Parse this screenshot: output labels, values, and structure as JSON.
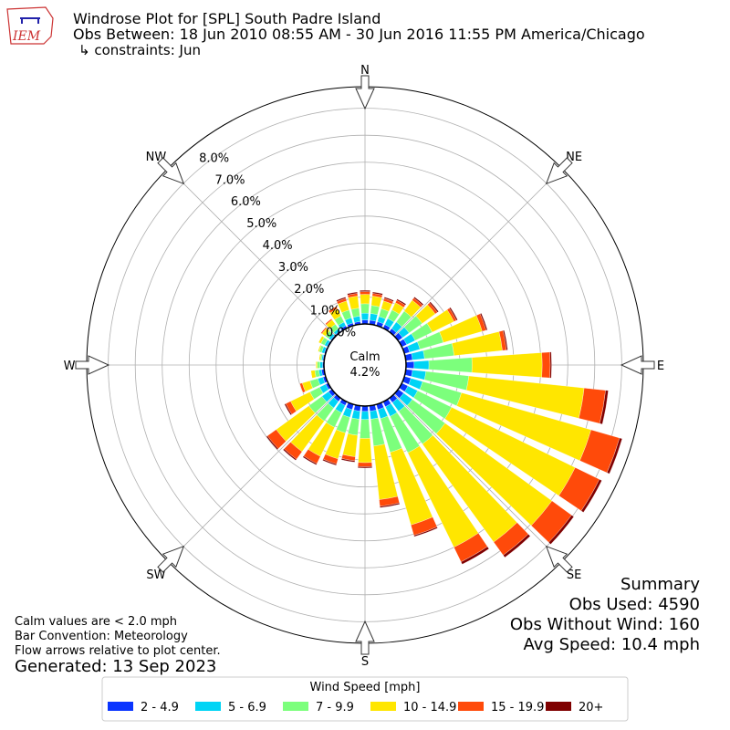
{
  "chart_data": {
    "type": "windrose",
    "logo_text": "IEM",
    "title": "Windrose Plot for [SPL] South Padre Island",
    "subtitle": "Obs Between: 18 Jun 2010 08:55 AM - 30 Jun 2016 11:55 PM America/Chicago",
    "constraints": "↳ constraints: Jun",
    "compass_labels": [
      "N",
      "NE",
      "E",
      "SE",
      "S",
      "SW",
      "W",
      "NW"
    ],
    "directions": [
      0,
      10,
      20,
      30,
      40,
      50,
      60,
      70,
      80,
      90,
      100,
      110,
      120,
      130,
      140,
      150,
      160,
      170,
      180,
      190,
      200,
      210,
      220,
      230,
      240,
      250,
      260,
      270,
      280,
      290,
      300,
      310,
      320,
      330,
      340,
      350
    ],
    "rlim": [
      0,
      8.8
    ],
    "rticks": [
      {
        "value": 0,
        "label": "0.0%"
      },
      {
        "value": 1,
        "label": "1.0%"
      },
      {
        "value": 2,
        "label": "2.0%"
      },
      {
        "value": 3,
        "label": "3.0%"
      },
      {
        "value": 4,
        "label": "4.0%"
      },
      {
        "value": 5,
        "label": "5.0%"
      },
      {
        "value": 6,
        "label": "6.0%"
      },
      {
        "value": 7,
        "label": "7.0%"
      },
      {
        "value": 8,
        "label": "8.0%"
      }
    ],
    "calm_label": "Calm",
    "calm_value": 4.2,
    "calm_value_label": "4.2%",
    "legend_title": "Wind Speed [mph]",
    "series": [
      {
        "name": "2 - 4.9",
        "color": "#0a35ff",
        "values": [
          0.15,
          0.15,
          0.15,
          0.15,
          0.15,
          0.2,
          0.2,
          0.2,
          0.25,
          0.3,
          0.25,
          0.25,
          0.25,
          0.25,
          0.2,
          0.2,
          0.2,
          0.2,
          0.2,
          0.2,
          0.2,
          0.15,
          0.15,
          0.15,
          0.1,
          0.1,
          0.1,
          0.05,
          0.05,
          0.05,
          0.05,
          0.05,
          0.05,
          0.1,
          0.1,
          0.1
        ]
      },
      {
        "name": "5 - 6.9",
        "color": "#00d4f5",
        "values": [
          0.25,
          0.25,
          0.2,
          0.25,
          0.3,
          0.3,
          0.35,
          0.4,
          0.45,
          0.55,
          0.5,
          0.45,
          0.4,
          0.4,
          0.4,
          0.4,
          0.35,
          0.3,
          0.3,
          0.3,
          0.3,
          0.3,
          0.3,
          0.3,
          0.25,
          0.2,
          0.1,
          0.1,
          0.05,
          0.1,
          0.1,
          0.1,
          0.1,
          0.15,
          0.2,
          0.2
        ]
      },
      {
        "name": "7 - 9.9",
        "color": "#7cff7c",
        "values": [
          0.35,
          0.3,
          0.3,
          0.35,
          0.5,
          0.6,
          0.7,
          0.9,
          1.1,
          1.6,
          1.6,
          1.5,
          1.4,
          1.5,
          1.5,
          1.5,
          1.3,
          1.0,
          0.7,
          0.6,
          0.6,
          0.6,
          0.6,
          0.6,
          0.4,
          0.3,
          0.15,
          0.1,
          0.05,
          0.1,
          0.15,
          0.15,
          0.2,
          0.25,
          0.3,
          0.3
        ]
      },
      {
        "name": "10 - 14.9",
        "color": "#ffe600",
        "values": [
          0.35,
          0.35,
          0.3,
          0.3,
          0.5,
          0.6,
          0.9,
          1.5,
          1.8,
          2.6,
          4.3,
          5.0,
          5.1,
          4.9,
          4.5,
          3.9,
          2.8,
          2.0,
          0.9,
          0.8,
          1.0,
          1.2,
          1.4,
          1.5,
          0.8,
          0.3,
          0.15,
          0.05,
          0.05,
          0.05,
          0.1,
          0.15,
          0.2,
          0.3,
          0.35,
          0.45
        ]
      },
      {
        "name": "15 - 19.9",
        "color": "#ff4a0a",
        "values": [
          0.1,
          0.1,
          0.1,
          0.1,
          0.1,
          0.1,
          0.1,
          0.15,
          0.15,
          0.3,
          0.8,
          1.1,
          1.0,
          0.9,
          0.6,
          0.6,
          0.4,
          0.25,
          0.15,
          0.15,
          0.2,
          0.3,
          0.35,
          0.4,
          0.2,
          0.1,
          0,
          0,
          0,
          0,
          0,
          0.05,
          0.05,
          0.1,
          0.1,
          0.1
        ]
      },
      {
        "name": "20+",
        "color": "#7f0000",
        "values": [
          0.05,
          0.05,
          0.05,
          0.05,
          0.05,
          0.05,
          0.05,
          0.05,
          0.05,
          0.05,
          0.1,
          0.1,
          0.1,
          0.1,
          0.1,
          0.1,
          0.05,
          0.05,
          0.05,
          0.05,
          0.05,
          0.05,
          0.05,
          0.05,
          0.05,
          0,
          0,
          0,
          0,
          0,
          0,
          0,
          0,
          0,
          0.05,
          0.05
        ]
      }
    ],
    "notes": [
      "Calm values are < 2.0 mph",
      "Bar Convention: Meteorology",
      "Flow arrows relative to plot center."
    ],
    "generated": "Generated: 13 Sep 2023",
    "summary": [
      "Summary",
      "Obs Used: 4590",
      "Obs Without Wind: 160",
      "Avg Speed: 10.4 mph"
    ]
  }
}
